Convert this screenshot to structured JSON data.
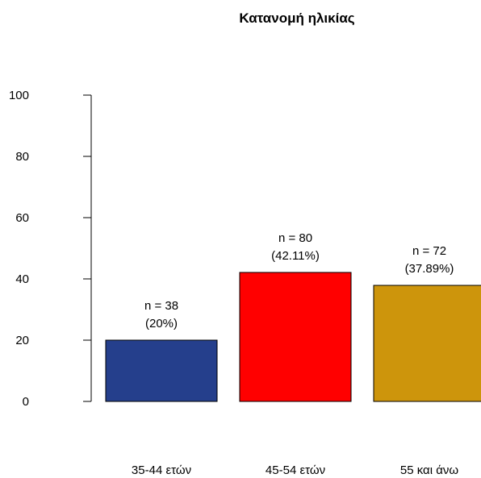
{
  "chart_data": {
    "type": "bar",
    "title": "Κατανομή ηλικίας",
    "xlabel": "",
    "ylabel": "",
    "categories": [
      "35-44 ετών",
      "45-54 ετών",
      "55 και άνω"
    ],
    "values": [
      20,
      42.11,
      37.89
    ],
    "labels": [
      {
        "count": "n = 38",
        "percent": "(20%)"
      },
      {
        "count": "n = 80",
        "percent": "(42.11%)"
      },
      {
        "count": "n = 72",
        "percent": "(37.89%)"
      }
    ],
    "colors": [
      "#253f8c",
      "#ff0000",
      "#cd950c"
    ],
    "ylim": [
      0,
      100
    ],
    "yticks": [
      0,
      20,
      40,
      60,
      80,
      100
    ],
    "grid": false,
    "legend": "none"
  }
}
